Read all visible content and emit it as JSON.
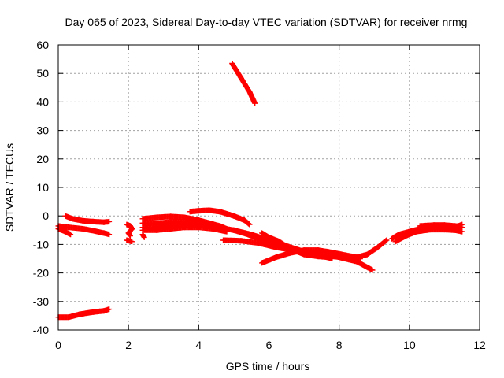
{
  "chart_data": {
    "type": "scatter",
    "title": "Day 065 of 2023, Sidereal Day-to-day VTEC variation (SDTVAR) for receiver nrmg",
    "xlabel": "GPS time / hours",
    "ylabel": "SDTVAR / TECUs",
    "xlim": [
      0,
      12
    ],
    "ylim": [
      -40,
      60
    ],
    "xticks": [
      0,
      2,
      4,
      6,
      8,
      10,
      12
    ],
    "yticks": [
      -40,
      -30,
      -20,
      -10,
      0,
      10,
      20,
      30,
      40,
      50,
      60
    ],
    "grid": true,
    "marker": "+",
    "color": "#ff0000",
    "series": [
      {
        "points": [
          [
            0.2,
            0
          ],
          [
            0.4,
            -1
          ],
          [
            0.7,
            -1.7
          ],
          [
            1.0,
            -2
          ],
          [
            1.3,
            -2.2
          ],
          [
            1.45,
            -2
          ]
        ]
      },
      {
        "points": [
          [
            0.0,
            -3.5
          ],
          [
            0.3,
            -4
          ],
          [
            0.7,
            -4.5
          ],
          [
            1.0,
            -5.2
          ],
          [
            1.3,
            -6
          ],
          [
            1.45,
            -6.5
          ]
        ]
      },
      {
        "points": [
          [
            0.0,
            -4.5
          ],
          [
            0.2,
            -5.5
          ],
          [
            0.35,
            -6.5
          ]
        ]
      },
      {
        "points": [
          [
            0.0,
            -35.5
          ],
          [
            0.3,
            -35.5
          ],
          [
            0.6,
            -34.5
          ],
          [
            1.0,
            -33.7
          ],
          [
            1.3,
            -33.3
          ],
          [
            1.45,
            -32.7
          ]
        ]
      },
      {
        "points": [
          [
            1.95,
            -3
          ],
          [
            2.05,
            -3.5
          ],
          [
            2.1,
            -4.5
          ],
          [
            2.0,
            -6
          ],
          [
            2.05,
            -7
          ]
        ]
      },
      {
        "points": [
          [
            1.95,
            -8.5
          ],
          [
            2.1,
            -9
          ]
        ]
      },
      {
        "points": [
          [
            2.4,
            -1
          ],
          [
            2.8,
            -0.5
          ],
          [
            3.2,
            -0.2
          ],
          [
            3.6,
            -0.5
          ],
          [
            4.0,
            -1.5
          ],
          [
            4.3,
            -2.5
          ],
          [
            4.6,
            -3.5
          ],
          [
            4.8,
            -4.5
          ]
        ]
      },
      {
        "points": [
          [
            2.4,
            -2.5
          ],
          [
            2.9,
            -2.5
          ],
          [
            3.3,
            -2
          ],
          [
            3.7,
            -2
          ],
          [
            4.0,
            -2.5
          ],
          [
            4.4,
            -3.5
          ]
        ]
      },
      {
        "points": [
          [
            2.4,
            -4
          ],
          [
            2.7,
            -4
          ],
          [
            3.0,
            -3.5
          ],
          [
            3.4,
            -3
          ],
          [
            3.7,
            -2.8
          ],
          [
            4.0,
            -3.2
          ],
          [
            4.5,
            -4
          ],
          [
            5.0,
            -5
          ],
          [
            5.5,
            -6.5
          ],
          [
            6.0,
            -8.5
          ],
          [
            6.5,
            -10.5
          ],
          [
            7.0,
            -12.5
          ],
          [
            7.5,
            -14
          ],
          [
            7.8,
            -15
          ]
        ]
      },
      {
        "points": [
          [
            2.4,
            -5
          ],
          [
            2.8,
            -5
          ],
          [
            3.2,
            -4.5
          ],
          [
            3.6,
            -4
          ],
          [
            4.0,
            -4
          ],
          [
            4.4,
            -4.5
          ],
          [
            4.8,
            -5.5
          ]
        ]
      },
      {
        "points": [
          [
            2.4,
            -6.5
          ],
          [
            2.45,
            -7.5
          ]
        ]
      },
      {
        "points": [
          [
            3.75,
            1.5
          ],
          [
            4.0,
            1.8
          ],
          [
            4.3,
            2
          ],
          [
            4.6,
            1.5
          ],
          [
            5.0,
            0
          ],
          [
            5.3,
            -1.5
          ],
          [
            5.45,
            -3
          ]
        ]
      },
      {
        "points": [
          [
            5.0,
            -5
          ],
          [
            5.4,
            -6.5
          ],
          [
            5.8,
            -8.5
          ],
          [
            6.2,
            -10
          ],
          [
            6.6,
            -11.5
          ],
          [
            7.0,
            -12.5
          ],
          [
            7.5,
            -13.5
          ],
          [
            8.0,
            -14.5
          ],
          [
            8.5,
            -16
          ],
          [
            8.95,
            -19
          ]
        ]
      },
      {
        "points": [
          [
            4.7,
            -8.5
          ],
          [
            5.2,
            -8.7
          ],
          [
            5.7,
            -9.5
          ],
          [
            6.2,
            -11
          ],
          [
            6.7,
            -12
          ],
          [
            7.2,
            -12.8
          ],
          [
            7.7,
            -13.7
          ],
          [
            8.2,
            -14.5
          ],
          [
            8.6,
            -15
          ]
        ]
      },
      {
        "points": [
          [
            5.8,
            -16.5
          ],
          [
            6.2,
            -14.5
          ],
          [
            6.6,
            -13
          ],
          [
            7.0,
            -12
          ],
          [
            7.4,
            -12
          ],
          [
            7.8,
            -12.8
          ],
          [
            8.2,
            -13.8
          ],
          [
            8.5,
            -14.5
          ],
          [
            8.8,
            -13.5
          ],
          [
            9.1,
            -11
          ],
          [
            9.35,
            -8.5
          ]
        ]
      },
      {
        "points": [
          [
            5.8,
            -6
          ],
          [
            6.0,
            -7.5
          ],
          [
            6.3,
            -9
          ],
          [
            6.6,
            -11.5
          ],
          [
            7.0,
            -13.5
          ],
          [
            7.4,
            -14.2
          ],
          [
            7.7,
            -14.5
          ]
        ]
      },
      {
        "points": [
          [
            4.95,
            53.5
          ],
          [
            5.2,
            48.5
          ],
          [
            5.45,
            43.5
          ],
          [
            5.6,
            39.5
          ]
        ]
      },
      {
        "points": [
          [
            9.5,
            -8
          ],
          [
            9.7,
            -6.5
          ],
          [
            10.0,
            -5.5
          ],
          [
            10.3,
            -4.5
          ],
          [
            10.7,
            -4
          ],
          [
            11.1,
            -4
          ],
          [
            11.4,
            -3.5
          ],
          [
            11.5,
            -3
          ]
        ]
      },
      {
        "points": [
          [
            9.6,
            -9
          ],
          [
            9.9,
            -7
          ],
          [
            10.2,
            -5.5
          ],
          [
            10.6,
            -4.8
          ],
          [
            11.0,
            -4.8
          ],
          [
            11.3,
            -5
          ],
          [
            11.5,
            -5.5
          ]
        ]
      },
      {
        "points": [
          [
            10.3,
            -3.5
          ],
          [
            10.7,
            -3.2
          ],
          [
            11.0,
            -3.2
          ],
          [
            11.3,
            -3.5
          ],
          [
            11.5,
            -4
          ]
        ]
      }
    ]
  }
}
